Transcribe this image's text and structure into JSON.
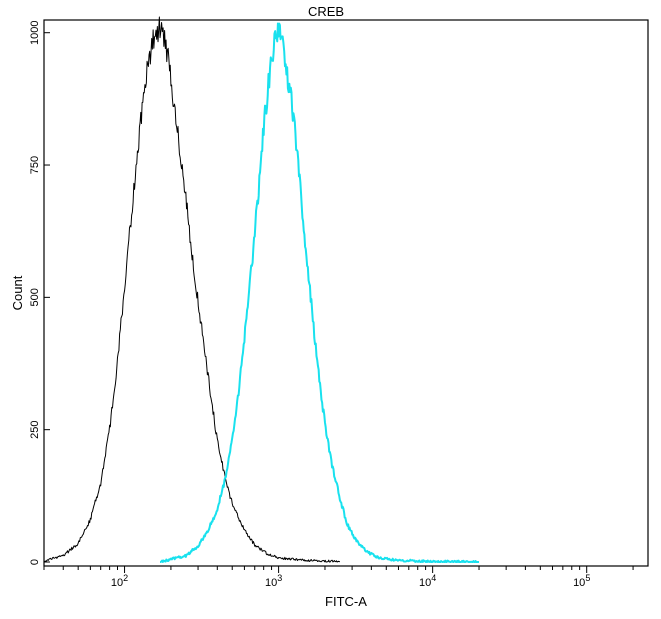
{
  "chart_data": {
    "type": "line",
    "title": "CREB",
    "xlabel": "FITC-A",
    "ylabel": "Count",
    "x_scale": "log",
    "xlim": [
      30,
      250000
    ],
    "ylim": [
      0,
      1024
    ],
    "y_ticks": [
      0,
      250,
      500,
      750,
      1000
    ],
    "y_tick_labels": [
      "0",
      "250",
      "500",
      "750",
      "1000"
    ],
    "x_ticks": [
      100,
      1000,
      10000,
      100000
    ],
    "x_tick_labels": [
      {
        "base": "10",
        "exp": "2"
      },
      {
        "base": "10",
        "exp": "3"
      },
      {
        "base": "10",
        "exp": "4"
      },
      {
        "base": "10",
        "exp": "5"
      }
    ],
    "grid": false,
    "legend": "none",
    "series": [
      {
        "color": "#000000",
        "points": [
          [
            30,
            2
          ],
          [
            40,
            12
          ],
          [
            50,
            35
          ],
          [
            60,
            80
          ],
          [
            70,
            150
          ],
          [
            80,
            250
          ],
          [
            90,
            380
          ],
          [
            100,
            520
          ],
          [
            110,
            650
          ],
          [
            120,
            760
          ],
          [
            130,
            860
          ],
          [
            140,
            930
          ],
          [
            150,
            975
          ],
          [
            160,
            1000
          ],
          [
            170,
            1010
          ],
          [
            180,
            995
          ],
          [
            190,
            960
          ],
          [
            200,
            910
          ],
          [
            220,
            820
          ],
          [
            250,
            690
          ],
          [
            280,
            560
          ],
          [
            320,
            430
          ],
          [
            360,
            320
          ],
          [
            400,
            230
          ],
          [
            450,
            160
          ],
          [
            500,
            110
          ],
          [
            600,
            60
          ],
          [
            700,
            32
          ],
          [
            850,
            15
          ],
          [
            1000,
            8
          ],
          [
            1500,
            3
          ],
          [
            2500,
            1
          ]
        ]
      },
      {
        "color": "#19e1ee",
        "points": [
          [
            170,
            0
          ],
          [
            250,
            12
          ],
          [
            300,
            30
          ],
          [
            350,
            60
          ],
          [
            400,
            100
          ],
          [
            450,
            155
          ],
          [
            500,
            230
          ],
          [
            550,
            320
          ],
          [
            600,
            420
          ],
          [
            650,
            520
          ],
          [
            700,
            620
          ],
          [
            750,
            720
          ],
          [
            800,
            820
          ],
          [
            850,
            890
          ],
          [
            900,
            950
          ],
          [
            950,
            990
          ],
          [
            1000,
            1000
          ],
          [
            1050,
            985
          ],
          [
            1100,
            950
          ],
          [
            1200,
            880
          ],
          [
            1300,
            790
          ],
          [
            1400,
            690
          ],
          [
            1500,
            590
          ],
          [
            1650,
            470
          ],
          [
            1800,
            370
          ],
          [
            2000,
            260
          ],
          [
            2200,
            190
          ],
          [
            2500,
            120
          ],
          [
            2800,
            70
          ],
          [
            3200,
            40
          ],
          [
            3800,
            18
          ],
          [
            4500,
            8
          ],
          [
            6000,
            3
          ],
          [
            10000,
            1
          ],
          [
            20000,
            0
          ]
        ]
      }
    ]
  }
}
